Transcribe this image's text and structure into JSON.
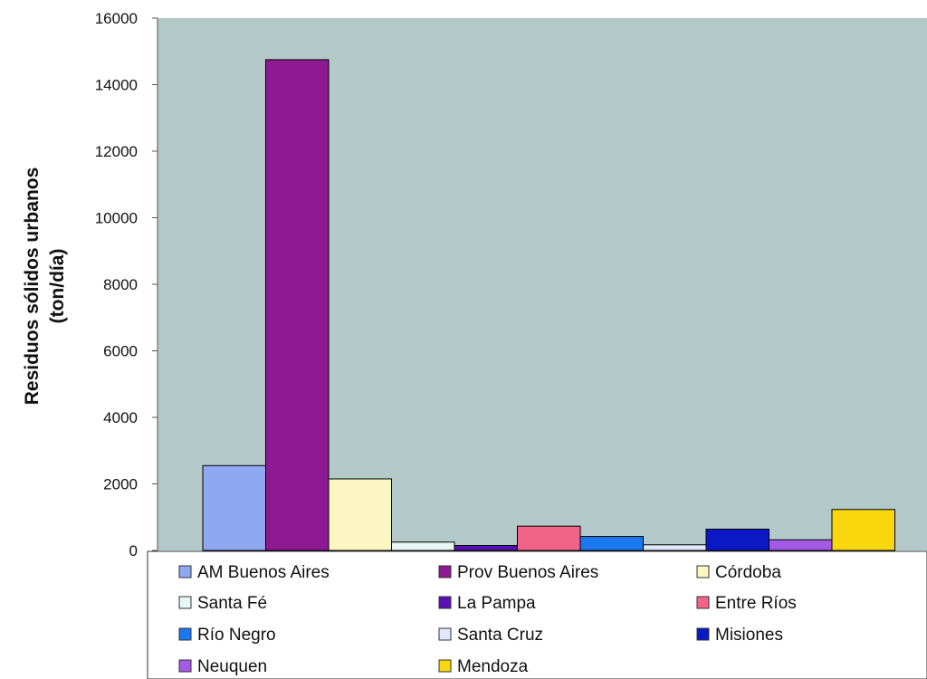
{
  "chart_data": {
    "type": "bar",
    "title": "",
    "xlabel": "",
    "ylabel_lines": [
      "Residuos sólidos urbanos",
      "(ton/día)"
    ],
    "ylim": [
      0,
      16000
    ],
    "yticks": [
      0,
      2000,
      4000,
      6000,
      8000,
      10000,
      12000,
      14000,
      16000
    ],
    "grid": false,
    "legend_position": "bottom",
    "plot_background": "#b3c8c8",
    "series": [
      {
        "name": "AM Buenos Aires",
        "value": 2550,
        "color": "#8ea8f2"
      },
      {
        "name": "Prov Buenos Aires",
        "value": 14750,
        "color": "#8e1a93"
      },
      {
        "name": "Córdoba",
        "value": 2150,
        "color": "#fbf6c2"
      },
      {
        "name": "Santa Fé",
        "value": 250,
        "color": "#e6f7f4"
      },
      {
        "name": "La Pampa",
        "value": 150,
        "color": "#5a10b5"
      },
      {
        "name": "Entre Ríos",
        "value": 730,
        "color": "#f0648a"
      },
      {
        "name": "Río Negro",
        "value": 420,
        "color": "#1a78f0"
      },
      {
        "name": "Santa Cruz",
        "value": 170,
        "color": "#dfe7fb"
      },
      {
        "name": "Misiones",
        "value": 640,
        "color": "#0b18c6"
      },
      {
        "name": "Neuquen",
        "value": 320,
        "color": "#a55ae6"
      },
      {
        "name": "Mendoza",
        "value": 1230,
        "color": "#f8d70e"
      }
    ]
  }
}
